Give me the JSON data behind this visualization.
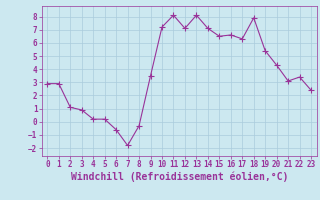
{
  "x": [
    0,
    1,
    2,
    3,
    4,
    5,
    6,
    7,
    8,
    9,
    10,
    11,
    12,
    13,
    14,
    15,
    16,
    17,
    18,
    19,
    20,
    21,
    22,
    23
  ],
  "y": [
    2.9,
    2.9,
    1.1,
    0.9,
    0.2,
    0.2,
    -0.6,
    -1.8,
    -0.3,
    3.5,
    7.2,
    8.1,
    7.1,
    8.1,
    7.1,
    6.5,
    6.6,
    6.3,
    7.9,
    5.4,
    4.3,
    3.1,
    3.4,
    2.4
  ],
  "line_color": "#993399",
  "marker": "+",
  "marker_size": 4,
  "bg_color": "#cce8f0",
  "grid_color": "#aaccdd",
  "xlabel": "Windchill (Refroidissement éolien,°C)",
  "xlim": [
    -0.5,
    23.5
  ],
  "ylim": [
    -2.6,
    8.8
  ],
  "yticks": [
    -2,
    -1,
    0,
    1,
    2,
    3,
    4,
    5,
    6,
    7,
    8
  ],
  "xticks": [
    0,
    1,
    2,
    3,
    4,
    5,
    6,
    7,
    8,
    9,
    10,
    11,
    12,
    13,
    14,
    15,
    16,
    17,
    18,
    19,
    20,
    21,
    22,
    23
  ],
  "tick_label_fontsize": 5.5,
  "xlabel_fontsize": 7,
  "label_color": "#993399"
}
